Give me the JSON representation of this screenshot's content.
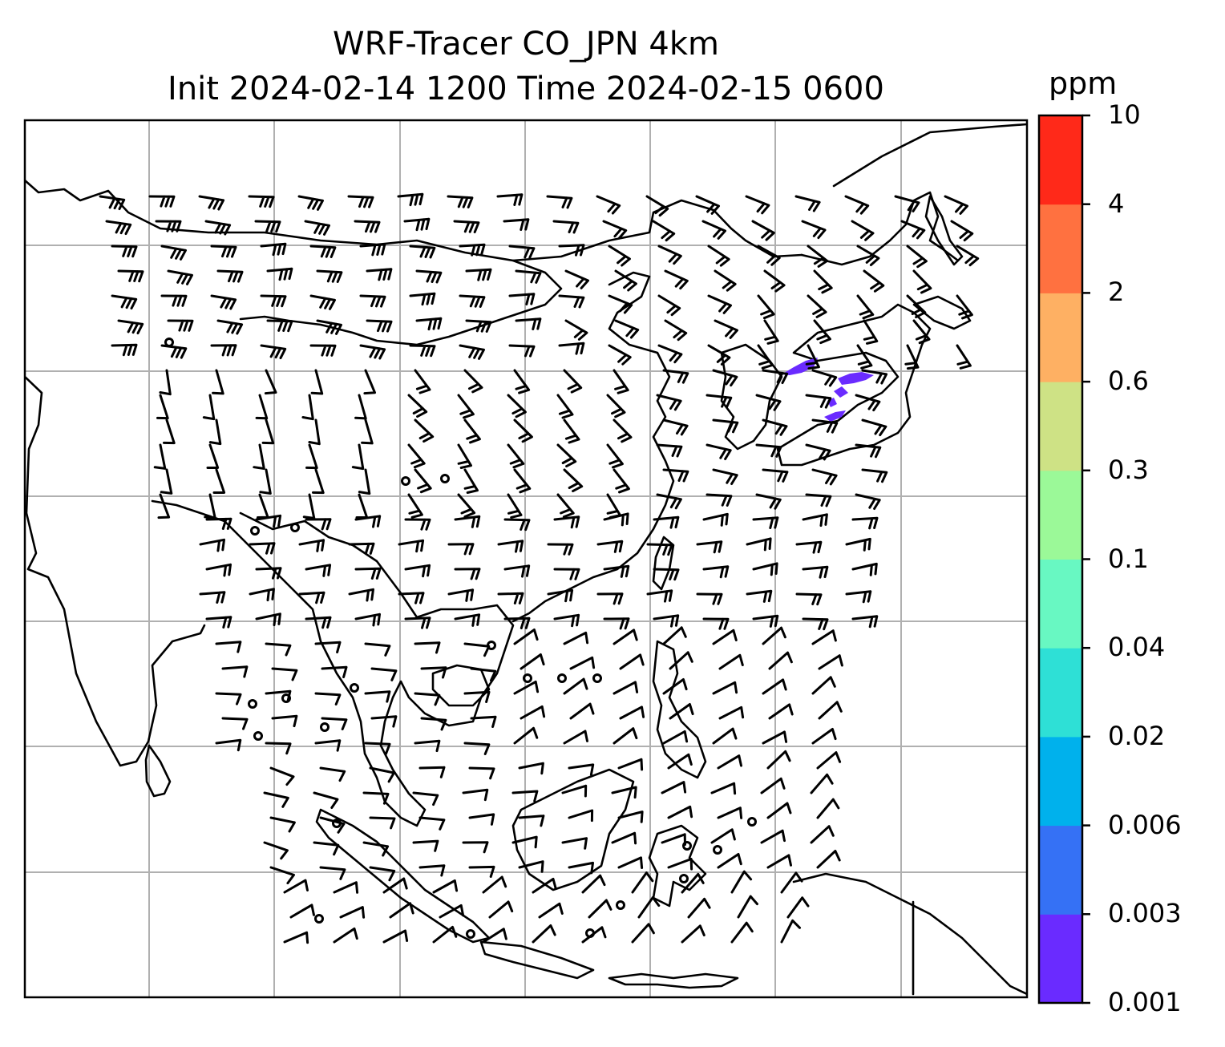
{
  "title": {
    "line1": "WRF-Tracer CO_JPN 4km",
    "line2": "Init 2024-02-14 1200 Time 2024-02-15 0600"
  },
  "colorbar": {
    "units": "ppm",
    "levels": [
      "0.001",
      "0.003",
      "0.006",
      "0.02",
      "0.04",
      "0.1",
      "0.3",
      "0.6",
      "2",
      "4",
      "10"
    ],
    "colors": [
      "#6a2bff",
      "#3571f5",
      "#00b1ec",
      "#2ee0d6",
      "#68f8c2",
      "#9bf998",
      "#cee285",
      "#feb063",
      "#ff7140",
      "#ff2919"
    ]
  },
  "map": {
    "gridlines": true,
    "coastline_color": "#000000",
    "gridline_color": "#b0b0b0",
    "field_color": "#6a2bff",
    "symbols": "wind barbs"
  }
}
